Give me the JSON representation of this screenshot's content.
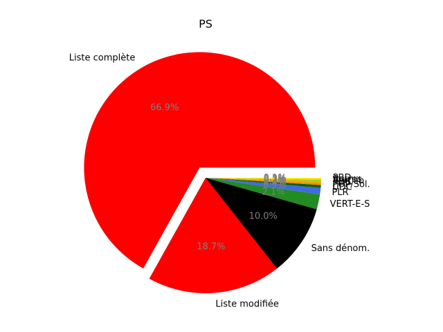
{
  "chart_data": {
    "type": "pie",
    "title": "PS",
    "slices": [
      {
        "label": "Liste complète",
        "value": 66.9,
        "pct_label": "66.9%",
        "color": "#ff0000",
        "exploded": true
      },
      {
        "label": "Liste modifiée",
        "value": 18.7,
        "pct_label": "18.7%",
        "color": "#ff0000",
        "exploded": false
      },
      {
        "label": "Sans dénom.",
        "value": 10.0,
        "pct_label": "10.0%",
        "color": "#000000",
        "exploded": false
      },
      {
        "label": "VERT-E-S",
        "value": 2.1,
        "pct_label": "2.1%",
        "color": "#228b22",
        "exploded": false
      },
      {
        "label": "PLR",
        "value": 0.9,
        "pct_label": "0.9%",
        "color": "#4169e1",
        "exploded": false
      },
      {
        "label": "UDC",
        "value": 0.4,
        "pct_label": "0.4%",
        "color": "#006400",
        "exploded": false
      },
      {
        "label": "POP/Sol.",
        "value": 0.3,
        "pct_label": "0.3%",
        "color": "#ff8c00",
        "exploded": false
      },
      {
        "label": "PDC",
        "value": 0.2,
        "pct_label": "0.2%",
        "color": "#ffa500",
        "exploded": false
      },
      {
        "label": "Vert'lib",
        "value": 0.2,
        "pct_label": "0.2%",
        "color": "#9acd32",
        "exploded": false
      },
      {
        "label": "Autres",
        "value": 0.2,
        "pct_label": "0.2%",
        "color": "#ffd700",
        "exploded": false
      },
      {
        "label": "PBD",
        "value": 0.1,
        "pct_label": "0.1%",
        "color": "#ffff00",
        "exploded": false
      }
    ]
  }
}
